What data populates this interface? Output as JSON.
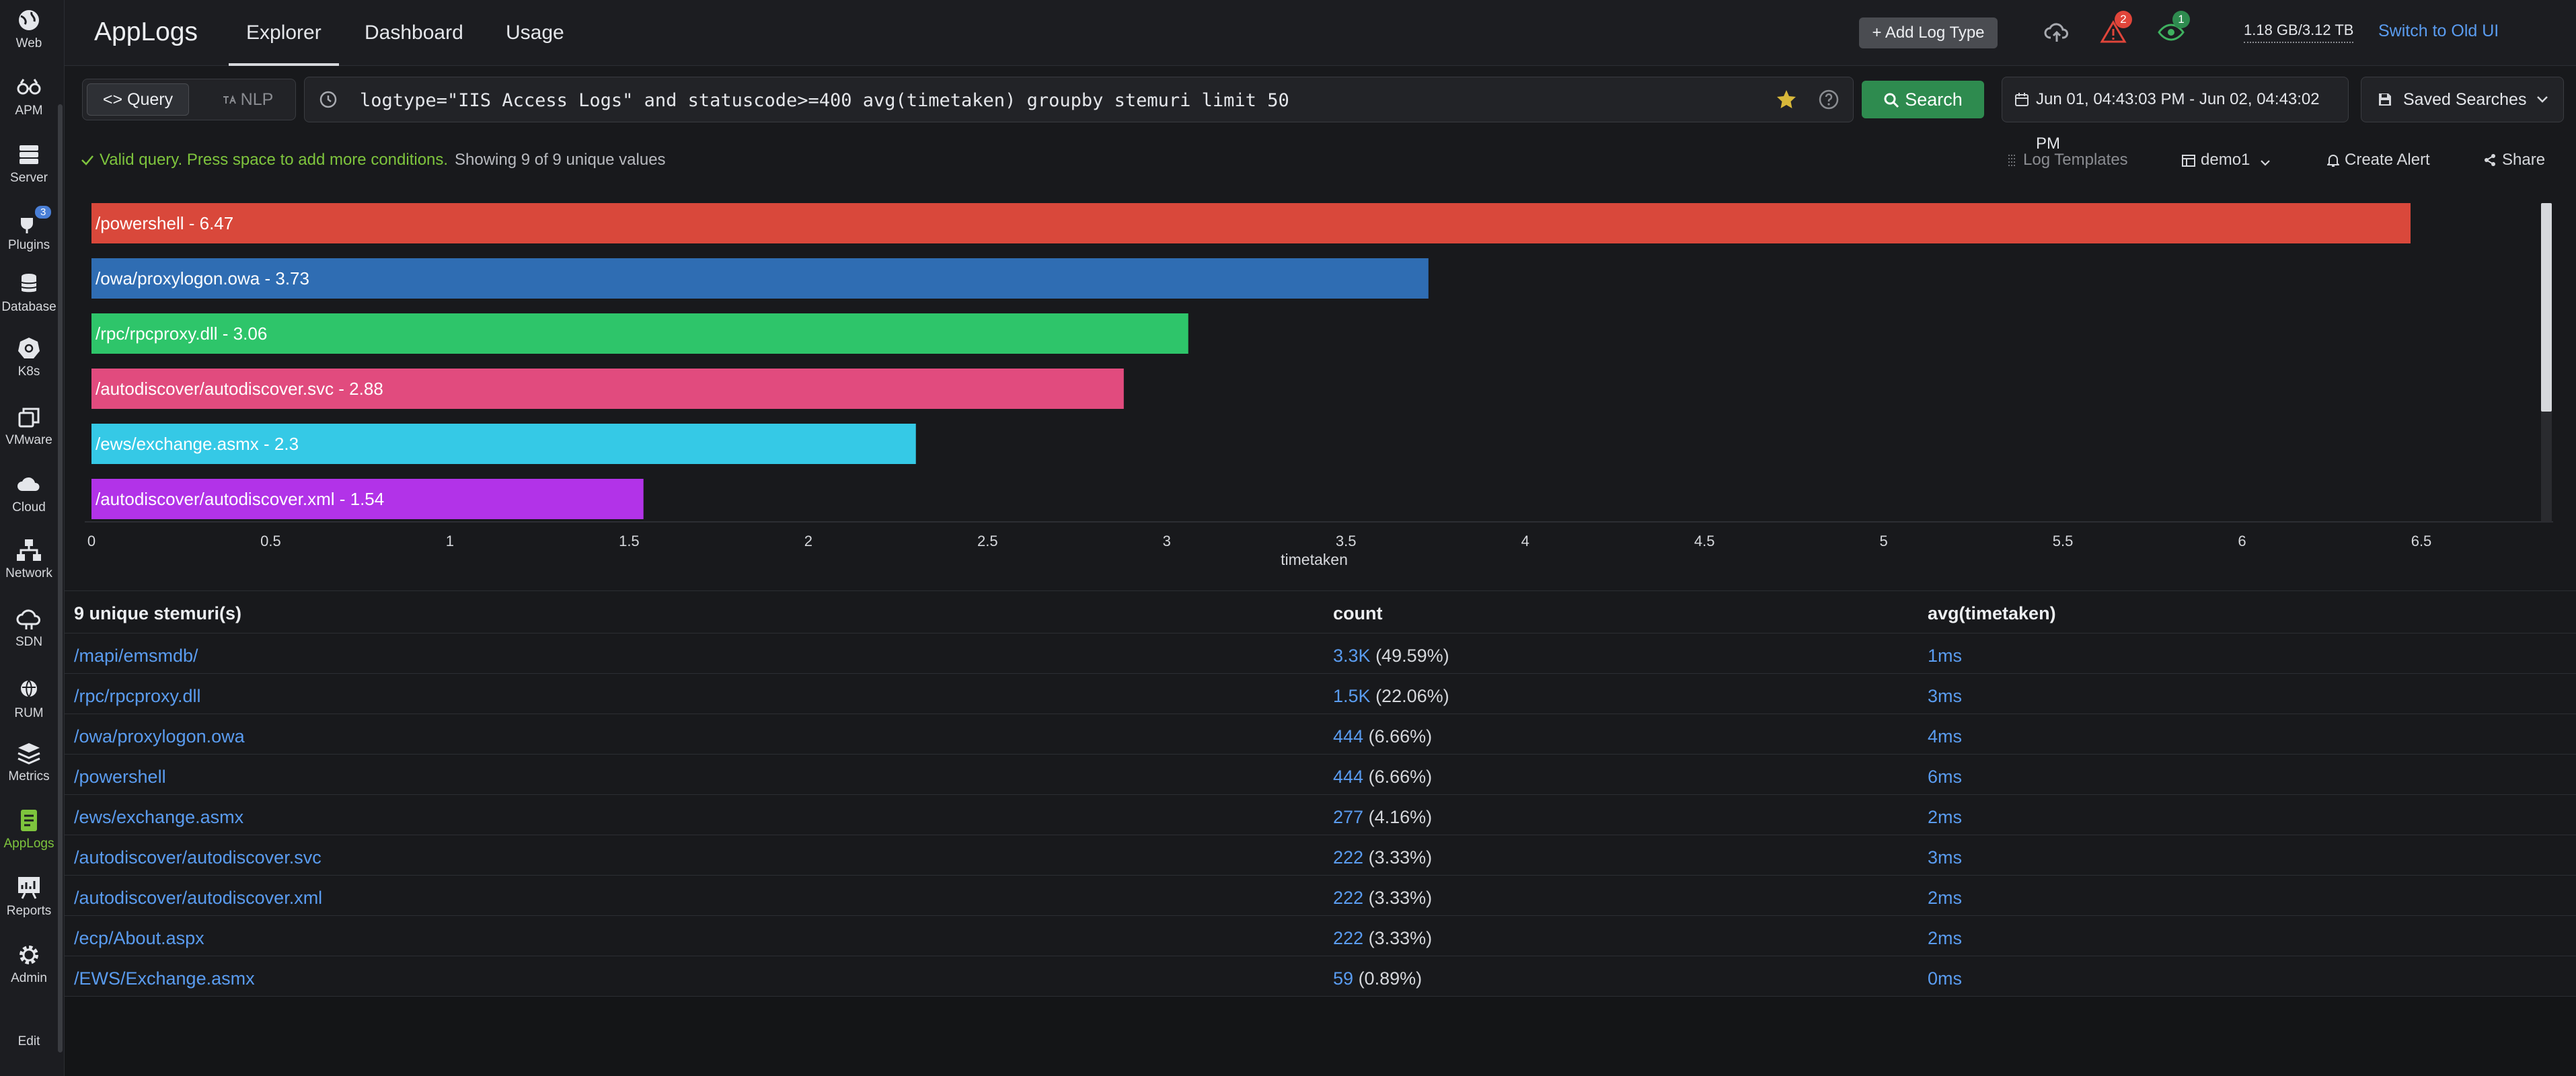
{
  "sidebar": {
    "items": [
      {
        "label": "Web",
        "icon": "globe-icon"
      },
      {
        "label": "APM",
        "icon": "apm-icon"
      },
      {
        "label": "Server",
        "icon": "server-icon"
      },
      {
        "label": "Plugins",
        "icon": "plugin-icon",
        "badge": "3"
      },
      {
        "label": "Database",
        "icon": "database-icon"
      },
      {
        "label": "K8s",
        "icon": "kubernetes-icon"
      },
      {
        "label": "VMware",
        "icon": "vmware-icon"
      },
      {
        "label": "Cloud",
        "icon": "cloud-icon"
      },
      {
        "label": "Network",
        "icon": "network-icon"
      },
      {
        "label": "SDN",
        "icon": "sdn-icon"
      },
      {
        "label": "RUM",
        "icon": "rum-icon"
      },
      {
        "label": "Metrics",
        "icon": "metrics-icon"
      },
      {
        "label": "AppLogs",
        "icon": "applogs-icon",
        "active": true
      },
      {
        "label": "Reports",
        "icon": "reports-icon"
      },
      {
        "label": "Admin",
        "icon": "gear-icon"
      },
      {
        "label": "Edit",
        "icon": ""
      }
    ]
  },
  "header": {
    "title": "AppLogs",
    "tabs": [
      "Explorer",
      "Dashboard",
      "Usage"
    ],
    "active_tab": "Explorer",
    "add_log_type": "+ Add Log Type",
    "alerts_badge": "2",
    "watch_badge": "1",
    "storage": "1.18 GB/3.12 TB",
    "switch_old": "Switch to Old UI"
  },
  "search": {
    "query_label": "<> Query",
    "nlp_label": "NLP",
    "query": "logtype=\"IIS Access Logs\" and statuscode>=400 avg(timetaken) groupby stemuri limit 50",
    "search_label": "Search",
    "date_range": "Jun 01, 04:43:03 PM - Jun 02, 04:43:02 PM",
    "saved_searches": "Saved Searches"
  },
  "status": {
    "valid": "Valid query. Press space to add more conditions.",
    "showing": "Showing 9 of 9 unique values",
    "log_templates": "Log Templates",
    "monitor": "demo1",
    "create_alert": "Create Alert",
    "share": "Share"
  },
  "chart_data": {
    "type": "bar",
    "orientation": "horizontal",
    "xlabel": "timetaken",
    "xlim": [
      0,
      6.5
    ],
    "xticks": [
      "0",
      "0.5",
      "1",
      "1.5",
      "2",
      "2.5",
      "3",
      "3.5",
      "4",
      "4.5",
      "5",
      "5.5",
      "6",
      "6.5"
    ],
    "bars": [
      {
        "label": "/powershell - 6.47",
        "value": 6.47,
        "color": "#d9483b"
      },
      {
        "label": "/owa/proxylogon.owa - 3.73",
        "value": 3.73,
        "color": "#2f6db3"
      },
      {
        "label": "/rpc/rpcproxy.dll - 3.06",
        "value": 3.06,
        "color": "#2ec56a"
      },
      {
        "label": "/autodiscover/autodiscover.svc - 2.88",
        "value": 2.88,
        "color": "#e14b7e"
      },
      {
        "label": "/ews/exchange.asmx - 2.3",
        "value": 2.3,
        "color": "#35c9e6"
      },
      {
        "label": "/autodiscover/autodiscover.xml - 1.54",
        "value": 1.54,
        "color": "#b233e8"
      }
    ]
  },
  "table": {
    "headers": [
      "9 unique stemuri(s)",
      "count",
      "avg(timetaken)"
    ],
    "rows": [
      {
        "uri": "/mapi/emsmdb/",
        "count": "3.3K",
        "pct": "(49.59%)",
        "avg": "1ms"
      },
      {
        "uri": "/rpc/rpcproxy.dll",
        "count": "1.5K",
        "pct": "(22.06%)",
        "avg": "3ms"
      },
      {
        "uri": "/owa/proxylogon.owa",
        "count": "444",
        "pct": "(6.66%)",
        "avg": "4ms"
      },
      {
        "uri": "/powershell",
        "count": "444",
        "pct": "(6.66%)",
        "avg": "6ms"
      },
      {
        "uri": "/ews/exchange.asmx",
        "count": "277",
        "pct": "(4.16%)",
        "avg": "2ms"
      },
      {
        "uri": "/autodiscover/autodiscover.svc",
        "count": "222",
        "pct": "(3.33%)",
        "avg": "3ms"
      },
      {
        "uri": "/autodiscover/autodiscover.xml",
        "count": "222",
        "pct": "(3.33%)",
        "avg": "2ms"
      },
      {
        "uri": "/ecp/About.aspx",
        "count": "222",
        "pct": "(3.33%)",
        "avg": "2ms"
      },
      {
        "uri": "/EWS/Exchange.asmx",
        "count": "59",
        "pct": "(0.89%)",
        "avg": "0ms"
      }
    ]
  }
}
